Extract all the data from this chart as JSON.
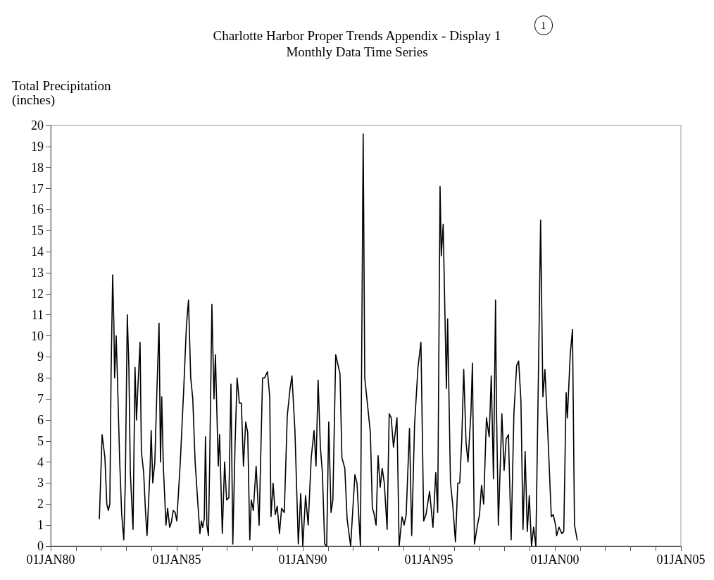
{
  "chart_data": {
    "type": "line",
    "title": "Charlotte Harbor Proper Trends Appendix - Display 1",
    "subtitle": "Monthly Data Time Series",
    "ylabel": "Total Precipitation\n(inches)",
    "annotations": [
      "1"
    ],
    "xlim": [
      "1980-01-01",
      "2005-01-01"
    ],
    "xticks": [
      {
        "value": "1980-01-01",
        "label": "01JAN80"
      },
      {
        "value": "1981-01-01",
        "label": null
      },
      {
        "value": "1982-01-01",
        "label": null
      },
      {
        "value": "1983-01-01",
        "label": null
      },
      {
        "value": "1984-01-01",
        "label": null
      },
      {
        "value": "1985-01-01",
        "label": "01JAN85"
      },
      {
        "value": "1986-01-01",
        "label": null
      },
      {
        "value": "1987-01-01",
        "label": null
      },
      {
        "value": "1988-01-01",
        "label": null
      },
      {
        "value": "1989-01-01",
        "label": null
      },
      {
        "value": "1990-01-01",
        "label": "01JAN90"
      },
      {
        "value": "1991-01-01",
        "label": null
      },
      {
        "value": "1992-01-01",
        "label": null
      },
      {
        "value": "1993-01-01",
        "label": null
      },
      {
        "value": "1994-01-01",
        "label": null
      },
      {
        "value": "1995-01-01",
        "label": "01JAN95"
      },
      {
        "value": "1996-01-01",
        "label": null
      },
      {
        "value": "1997-01-01",
        "label": null
      },
      {
        "value": "1998-01-01",
        "label": null
      },
      {
        "value": "1999-01-01",
        "label": null
      },
      {
        "value": "2000-01-01",
        "label": "01JAN00"
      },
      {
        "value": "2001-01-01",
        "label": null
      },
      {
        "value": "2002-01-01",
        "label": null
      },
      {
        "value": "2003-01-01",
        "label": null
      },
      {
        "value": "2004-01-01",
        "label": null
      },
      {
        "value": "2005-01-01",
        "label": "01JAN05"
      }
    ],
    "ylim": [
      0,
      20
    ],
    "yticks": [
      0,
      1,
      2,
      3,
      4,
      5,
      6,
      7,
      8,
      9,
      10,
      11,
      12,
      13,
      14,
      15,
      16,
      17,
      18,
      19,
      20
    ],
    "line_style": "solid",
    "series": [
      {
        "color": "#000000",
        "x": [
          "1981-12-06",
          "1982-01-15",
          "1982-02-25",
          "1982-03-24",
          "1982-04-15",
          "1982-05-07",
          "1982-05-25",
          "1982-06-17",
          "1982-07-05",
          "1982-07-15",
          "1982-08-07",
          "1982-08-25",
          "1982-09-27",
          "1982-10-26",
          "1982-11-25",
          "1982-12-17",
          "1983-01-15",
          "1983-02-07",
          "1983-02-28",
          "1983-04-08",
          "1983-05-07",
          "1983-05-28",
          "1983-06-17",
          "1983-07-19",
          "1983-08-07",
          "1983-09-09",
          "1983-10-08",
          "1983-10-28",
          "1983-12-09",
          "1983-12-27",
          "1984-01-19",
          "1984-02-18",
          "1984-03-20",
          "1984-04-19",
          "1984-05-10",
          "1984-05-28",
          "1984-06-20",
          "1984-07-08",
          "1984-07-28",
          "1984-08-21",
          "1984-09-20",
          "1984-10-12",
          "1984-11-11",
          "1984-12-09",
          "1985-01-01",
          "1985-02-21",
          "1985-04-12",
          "1985-05-21",
          "1985-06-20",
          "1985-07-22",
          "1985-08-21",
          "1985-09-24",
          "1985-11-03",
          "1985-12-02",
          "1985-12-24",
          "1986-01-12",
          "1986-02-03",
          "1986-02-21",
          "1986-03-13",
          "1986-04-05",
          "1986-04-23",
          "1986-05-25",
          "1986-06-24",
          "1986-07-15",
          "1986-08-25",
          "1986-09-13",
          "1986-10-23",
          "1986-11-25",
          "1986-12-24",
          "1987-01-26",
          "1987-02-25",
          "1987-03-24",
          "1987-04-26",
          "1987-05-25",
          "1987-06-27",
          "1987-07-26",
          "1987-08-25",
          "1987-09-27",
          "1987-10-26",
          "1987-11-25",
          "1987-12-17",
          "1988-01-15",
          "1988-02-25",
          "1988-04-08",
          "1988-05-28",
          "1988-06-27",
          "1988-08-07",
          "1988-09-09",
          "1988-09-27",
          "1988-10-28",
          "1988-11-28",
          "1988-12-27",
          "1989-01-28",
          "1989-02-28",
          "1989-04-08",
          "1989-05-21",
          "1989-07-01",
          "1989-07-28",
          "1989-09-09",
          "1989-10-28",
          "1989-12-02",
          "1990-01-01",
          "1990-02-10",
          "1990-03-20",
          "1990-05-03",
          "1990-06-13",
          "1990-07-12",
          "1990-08-11",
          "1990-09-13",
          "1990-10-12",
          "1990-11-14",
          "1990-12-13",
          "1991-01-12",
          "1991-02-14",
          "1991-03-13",
          "1991-04-23",
          "1991-06-24",
          "1991-07-22",
          "1991-09-02",
          "1991-10-05",
          "1991-11-25",
          "1992-01-26",
          "1992-02-25",
          "1992-04-15",
          "1992-05-25",
          "1992-06-17",
          "1992-09-06",
          "1992-10-05",
          "1992-10-26",
          "1992-11-28",
          "1992-12-27",
          "1993-01-26",
          "1993-02-25",
          "1993-03-27",
          "1993-05-07",
          "1993-06-06",
          "1993-07-05",
          "1993-08-07",
          "1993-09-27",
          "1993-10-28",
          "1993-12-09",
          "1994-01-08",
          "1994-02-07",
          "1994-03-27",
          "1994-04-28",
          "1994-06-09",
          "1994-07-28",
          "1994-09-09",
          "1994-10-19",
          "1994-11-21",
          "1995-01-12",
          "1995-03-02",
          "1995-04-12",
          "1995-05-10",
          "1995-06-13",
          "1995-07-01",
          "1995-07-28",
          "1995-09-13",
          "1995-10-01",
          "1995-11-11",
          "1995-12-13",
          "1996-01-22",
          "1996-02-25",
          "1996-03-24",
          "1996-04-23",
          "1996-05-21",
          "1996-06-24",
          "1996-07-22",
          "1996-09-02",
          "1996-09-24",
          "1996-10-23",
          "1996-12-06",
          "1997-01-05",
          "1997-02-03",
          "1997-03-06",
          "1997-04-15",
          "1997-05-25",
          "1997-06-24",
          "1997-07-26",
          "1997-08-25",
          "1997-09-06",
          "1997-10-05",
          "1997-11-25",
          "1997-12-27",
          "1998-01-26",
          "1998-02-28",
          "1998-04-08",
          "1998-05-18",
          "1998-06-27",
          "1998-07-26",
          "1998-08-28",
          "1998-09-27",
          "1998-10-28",
          "1998-11-28",
          "1998-12-27",
          "1999-01-28",
          "1999-02-28",
          "1999-04-01",
          "1999-05-10",
          "1999-06-09",
          "1999-07-12",
          "1999-08-11",
          "1999-09-20",
          "1999-11-11",
          "1999-12-09",
          "2000-01-12",
          "2000-01-28",
          "2000-03-02",
          "2000-04-12",
          "2000-05-10",
          "2000-06-13",
          "2000-07-01",
          "2000-08-11",
          "2000-09-13",
          "2000-10-12",
          "2000-11-21"
        ],
        "values": [
          1.3,
          5.3,
          4.2,
          2.0,
          1.7,
          2.0,
          8.2,
          12.9,
          10.5,
          8.0,
          10.0,
          8.0,
          4.0,
          1.5,
          0.3,
          3.0,
          11.0,
          8.5,
          3.5,
          0.8,
          8.5,
          6.0,
          7.5,
          9.7,
          4.5,
          3.5,
          1.5,
          0.5,
          3.5,
          5.5,
          3.0,
          4.0,
          7.5,
          10.6,
          4.0,
          7.1,
          3.8,
          2.5,
          1.0,
          1.8,
          0.9,
          1.1,
          1.7,
          1.6,
          1.2,
          4.0,
          7.5,
          10.5,
          11.7,
          8.0,
          7.0,
          4.0,
          2.0,
          0.6,
          1.2,
          0.9,
          1.3,
          5.2,
          1.0,
          0.5,
          4.0,
          11.5,
          7.0,
          9.1,
          3.8,
          5.3,
          0.6,
          4.0,
          2.2,
          2.3,
          7.7,
          0.1,
          4.9,
          8.0,
          6.8,
          6.8,
          3.8,
          5.9,
          5.4,
          0.3,
          2.2,
          1.7,
          3.8,
          1.0,
          8.0,
          8.0,
          8.3,
          7.1,
          1.4,
          3.0,
          1.5,
          1.9,
          0.6,
          1.8,
          1.6,
          6.2,
          7.5,
          8.1,
          5.5,
          0.1,
          2.5,
          0.0,
          2.4,
          1.0,
          4.2,
          5.5,
          3.8,
          7.9,
          4.7,
          3.5,
          0.1,
          0.0,
          5.9,
          1.6,
          2.2,
          9.1,
          8.2,
          4.2,
          3.7,
          1.3,
          0.0,
          3.4,
          3.0,
          0.0,
          19.6,
          8.0,
          5.4,
          1.8,
          1.6,
          1.0,
          4.3,
          2.8,
          3.7,
          3.0,
          0.8,
          6.3,
          6.1,
          4.7,
          6.1,
          0.0,
          1.4,
          1.0,
          1.5,
          5.6,
          0.5,
          5.8,
          8.5,
          9.7,
          1.2,
          1.5,
          2.6,
          0.9,
          3.5,
          1.6,
          17.1,
          13.8,
          15.3,
          7.5,
          10.8,
          3.0,
          2.0,
          0.2,
          3.0,
          3.0,
          5.1,
          8.4,
          4.9,
          4.0,
          6.3,
          8.7,
          0.1,
          1.0,
          1.5,
          2.9,
          2.0,
          6.1,
          5.2,
          8.1,
          3.2,
          11.7,
          6.9,
          1.0,
          6.3,
          3.6,
          5.1,
          5.3,
          0.3,
          6.3,
          8.6,
          8.8,
          6.9,
          0.8,
          4.5,
          0.7,
          2.4,
          0.0,
          0.9,
          0.0,
          8.5,
          15.5,
          7.1,
          8.4,
          5.5,
          1.4,
          1.5,
          1.0,
          0.5,
          0.9,
          0.6,
          0.7,
          7.3,
          6.1,
          9.1,
          10.3,
          1.0,
          0.3
        ]
      }
    ]
  }
}
